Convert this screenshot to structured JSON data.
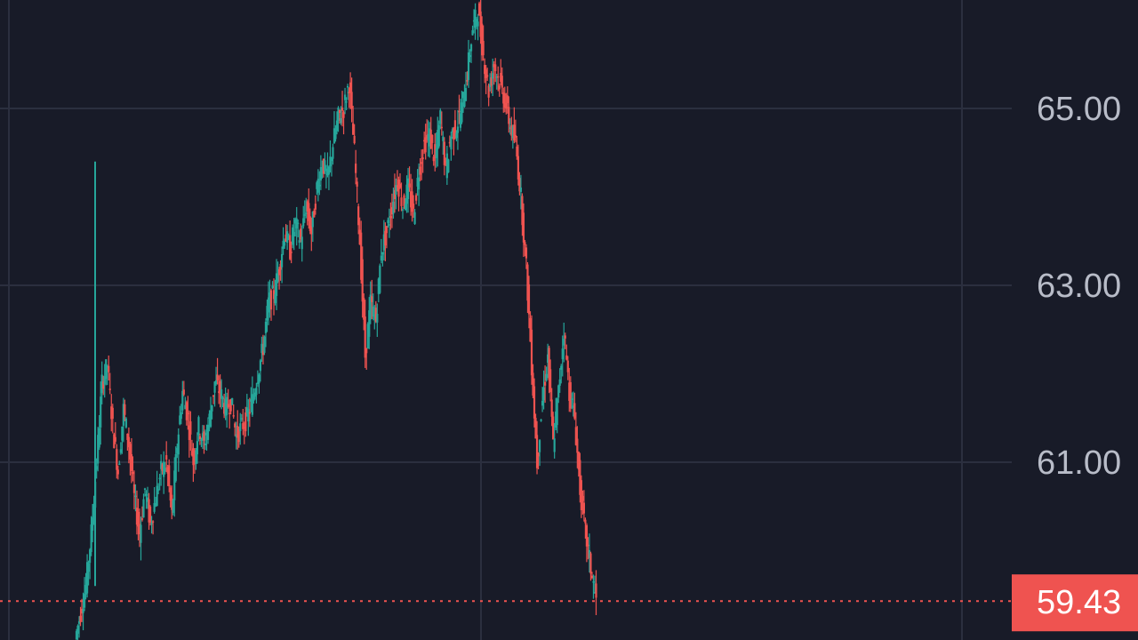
{
  "colors": {
    "background": "#181b28",
    "grid": "#2b2f3f",
    "up": "#26a69a",
    "down": "#ef5350",
    "axis_text": "#b8bcc8",
    "last_price_bg": "#ef5350",
    "last_price_text": "#ffffff"
  },
  "chart_data": {
    "type": "candlestick",
    "title": "",
    "xlabel": "",
    "ylabel": "",
    "ylim": [
      59.0,
      66.3
    ],
    "grid": true,
    "y_ticks": [
      {
        "value": 65.0,
        "label": "65.00"
      },
      {
        "value": 63.0,
        "label": "63.00"
      },
      {
        "value": 61.0,
        "label": "61.00"
      }
    ],
    "last_price": {
      "value": 59.43,
      "label": "59.43"
    },
    "series": [
      {
        "values": [
          59.0,
          59.3,
          59.6,
          60.2,
          61.0,
          61.9,
          62.1,
          61.4,
          60.9,
          61.6,
          61.2,
          60.6,
          60.2,
          60.7,
          60.3,
          60.6,
          60.9,
          61.0,
          60.4,
          61.2,
          61.8,
          61.5,
          61.0,
          61.4,
          61.2,
          61.5,
          61.9,
          61.8,
          61.6,
          61.7,
          61.3,
          61.4,
          61.5,
          61.7,
          62.0,
          62.3,
          62.8,
          62.9,
          63.2,
          63.6,
          63.4,
          63.7,
          63.5,
          63.9,
          63.6,
          64.1,
          64.4,
          64.2,
          64.6,
          64.9,
          65.0,
          65.3,
          64.5,
          63.5,
          62.2,
          62.8,
          62.6,
          63.4,
          63.6,
          63.9,
          64.2,
          63.9,
          64.1,
          63.8,
          64.3,
          64.6,
          64.7,
          64.4,
          64.9,
          64.3,
          64.7,
          64.8,
          65.0,
          65.4,
          65.9,
          66.1,
          65.6,
          65.2,
          65.5,
          65.3,
          65.1,
          64.8,
          64.6,
          64.0,
          63.2,
          62.1,
          61.0,
          61.7,
          62.2,
          61.2,
          61.8,
          62.5,
          61.8,
          61.5,
          60.7,
          60.2,
          59.8,
          59.43
        ]
      }
    ]
  }
}
